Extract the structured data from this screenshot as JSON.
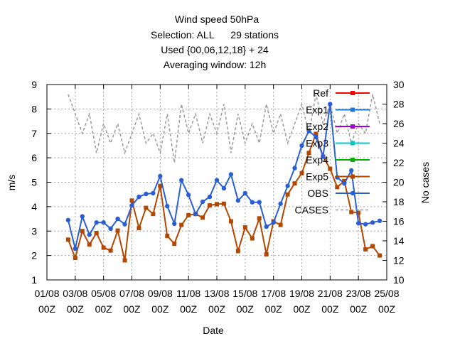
{
  "chart_data": {
    "type": "line",
    "title_lines": [
      "Wind speed 50hPa",
      "Selection: ALL      29 stations",
      "Used {00,06,12,18} + 24",
      "Averaging window: 12h"
    ],
    "xlabel": "Date",
    "ylabel": "m/s",
    "y2label": "No cases",
    "ylim": [
      1,
      9
    ],
    "y2lim": [
      10,
      30
    ],
    "yticks": [
      "1",
      "2",
      "3",
      "4",
      "5",
      "6",
      "7",
      "8",
      "9"
    ],
    "y2ticks": [
      "10",
      "12",
      "14",
      "16",
      "18",
      "20",
      "22",
      "24",
      "26",
      "28",
      "30"
    ],
    "xlim": [
      1,
      25
    ],
    "xticks": [
      {
        "day": 1,
        "line1": "01/08",
        "line2": "00Z"
      },
      {
        "day": 3,
        "line1": "03/08",
        "line2": "00Z"
      },
      {
        "day": 5,
        "line1": "05/08",
        "line2": "00Z"
      },
      {
        "day": 7,
        "line1": "07/08",
        "line2": "00Z"
      },
      {
        "day": 9,
        "line1": "09/08",
        "line2": "00Z"
      },
      {
        "day": 11,
        "line1": "11/08",
        "line2": "00Z"
      },
      {
        "day": 13,
        "line1": "13/08",
        "line2": "00Z"
      },
      {
        "day": 15,
        "line1": "15/08",
        "line2": "00Z"
      },
      {
        "day": 17,
        "line1": "17/08",
        "line2": "00Z"
      },
      {
        "day": 19,
        "line1": "19/08",
        "line2": "00Z"
      },
      {
        "day": 21,
        "line1": "21/08",
        "line2": "00Z"
      },
      {
        "day": 23,
        "line1": "23/08",
        "line2": "00Z"
      },
      {
        "day": 25,
        "line1": "25/08",
        "line2": "00Z"
      }
    ],
    "grid": true,
    "legend_position": "top-right",
    "legend": [
      {
        "name": "Ref",
        "color": "#ff0000",
        "marker": "square"
      },
      {
        "name": "Exp1",
        "color": "#1f77e0",
        "marker": "square"
      },
      {
        "name": "Exp2",
        "color": "#a000d0",
        "marker": "square"
      },
      {
        "name": "Exp3",
        "color": "#00c8c8",
        "marker": "square"
      },
      {
        "name": "Exp4",
        "color": "#00b000",
        "marker": "square"
      },
      {
        "name": "Exp5",
        "color": "#b34700",
        "marker": "square"
      },
      {
        "name": "OBS",
        "color": "#2a5fd4",
        "marker": "circle"
      },
      {
        "name": "CASES",
        "color": "#999999",
        "marker": "none"
      }
    ],
    "x": [
      2.5,
      3.0,
      3.5,
      4.0,
      4.5,
      5.0,
      5.5,
      6.0,
      6.5,
      7.0,
      7.5,
      8.0,
      8.5,
      9.0,
      9.5,
      10.0,
      10.5,
      11.0,
      11.5,
      12.0,
      12.5,
      13.0,
      13.5,
      14.0,
      14.5,
      15.0,
      15.5,
      16.0,
      16.5,
      17.0,
      17.5,
      18.0,
      18.5,
      19.0,
      19.5,
      20.0,
      20.5,
      21.0,
      21.5,
      22.0,
      22.5,
      23.0,
      23.5,
      24.0,
      24.5
    ],
    "series": [
      {
        "name": "Exp5",
        "color": "#b34700",
        "marker": "square",
        "values": [
          2.65,
          1.9,
          3.0,
          2.45,
          2.92,
          2.32,
          2.2,
          3.02,
          1.8,
          4.25,
          3.12,
          3.95,
          3.7,
          4.85,
          2.8,
          2.48,
          3.25,
          3.65,
          3.7,
          3.55,
          4.05,
          4.1,
          4.12,
          3.4,
          2.18,
          3.15,
          2.7,
          3.52,
          2.05,
          3.4,
          3.25,
          4.5,
          4.95,
          5.37,
          6.2,
          6.98,
          6.05,
          5.55,
          4.8,
          5.05,
          3.78,
          3.75,
          2.25,
          2.38,
          2.0
        ]
      },
      {
        "name": "OBS",
        "color": "#2a5fd4",
        "marker": "circle",
        "values": [
          3.45,
          2.28,
          3.6,
          2.85,
          3.35,
          3.35,
          3.1,
          3.5,
          3.28,
          4.05,
          4.4,
          4.52,
          4.55,
          5.25,
          4.02,
          3.3,
          5.08,
          4.48,
          3.7,
          4.2,
          4.4,
          5.08,
          4.75,
          5.32,
          4.25,
          4.55,
          4.18,
          4.18,
          3.18,
          3.35,
          4.12,
          4.85,
          5.58,
          6.5,
          7.1,
          6.85,
          6.05,
          8.2,
          5.2,
          4.95,
          5.48,
          3.32,
          3.28,
          3.35,
          3.42
        ]
      },
      {
        "name": "CASES",
        "color": "#999999",
        "marker": "none",
        "values": [
          29,
          27,
          25,
          27,
          23,
          26,
          24,
          26,
          23,
          25,
          27,
          24,
          25,
          23,
          27,
          22,
          28,
          25,
          27,
          24,
          27,
          25,
          28,
          23,
          27,
          24,
          26,
          24,
          28,
          25,
          27,
          24,
          26,
          28,
          25,
          29,
          26,
          28,
          25,
          27,
          24,
          26,
          25,
          29,
          26
        ]
      }
    ]
  }
}
